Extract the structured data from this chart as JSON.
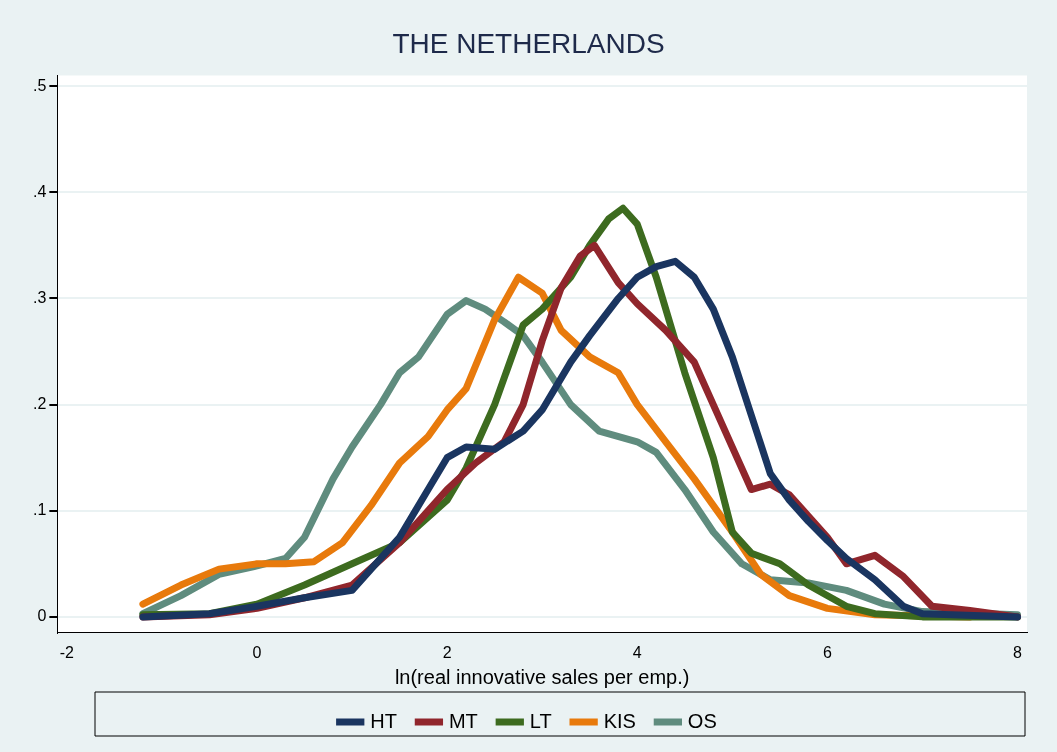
{
  "chart_data": {
    "type": "line",
    "title": "THE NETHERLANDS",
    "xlabel": "ln(real innovative sales per emp.)",
    "xlim": [
      -2.1,
      8.1
    ],
    "xticks": [
      -2,
      0,
      2,
      4,
      6,
      8
    ],
    "ylim": [
      -0.015,
      0.51
    ],
    "yticks": [
      {
        "value": 0,
        "label": "0"
      },
      {
        "value": 0.1,
        "label": ".1"
      },
      {
        "value": 0.2,
        "label": ".2"
      },
      {
        "value": 0.3,
        "label": ".3"
      },
      {
        "value": 0.4,
        "label": ".4"
      },
      {
        "value": 0.5,
        "label": ".5"
      }
    ],
    "grid": "y",
    "legend": "bottom",
    "marker": "none",
    "line_style": "solid",
    "series": [
      {
        "name": "HT",
        "color": "#1a3560",
        "x": [
          -1.2,
          -0.5,
          0,
          0.5,
          1.0,
          1.2,
          1.5,
          1.8,
          2.0,
          2.2,
          2.5,
          2.8,
          3.0,
          3.3,
          3.5,
          3.8,
          4.0,
          4.2,
          4.4,
          4.6,
          4.8,
          5.0,
          5.2,
          5.4,
          5.6,
          5.8,
          6.0,
          6.2,
          6.5,
          6.8,
          7.0,
          8.0
        ],
        "values": [
          0.0,
          0.003,
          0.01,
          0.018,
          0.025,
          0.045,
          0.075,
          0.12,
          0.15,
          0.16,
          0.158,
          0.175,
          0.195,
          0.24,
          0.265,
          0.3,
          0.32,
          0.33,
          0.335,
          0.32,
          0.29,
          0.245,
          0.19,
          0.135,
          0.11,
          0.09,
          0.072,
          0.055,
          0.035,
          0.01,
          0.003,
          0.0
        ]
      },
      {
        "name": "MT",
        "color": "#90262c",
        "x": [
          -1.2,
          -0.5,
          0,
          0.5,
          1.0,
          1.5,
          2.0,
          2.3,
          2.6,
          2.8,
          3.0,
          3.2,
          3.4,
          3.55,
          3.8,
          4.0,
          4.3,
          4.6,
          4.8,
          5.0,
          5.2,
          5.4,
          5.6,
          5.8,
          6.0,
          6.2,
          6.5,
          6.8,
          7.1,
          7.5,
          8.0
        ],
        "values": [
          0.0,
          0.002,
          0.008,
          0.018,
          0.03,
          0.07,
          0.12,
          0.145,
          0.165,
          0.2,
          0.26,
          0.31,
          0.34,
          0.35,
          0.315,
          0.295,
          0.27,
          0.24,
          0.2,
          0.16,
          0.12,
          0.125,
          0.115,
          0.095,
          0.075,
          0.05,
          0.058,
          0.038,
          0.01,
          0.006,
          0.0
        ]
      },
      {
        "name": "LT",
        "color": "#3d6b1f",
        "x": [
          -1.2,
          -0.5,
          0,
          0.5,
          1.0,
          1.5,
          2.0,
          2.2,
          2.5,
          2.8,
          3.0,
          3.3,
          3.5,
          3.7,
          3.85,
          4.0,
          4.2,
          4.5,
          4.8,
          5.0,
          5.2,
          5.5,
          5.8,
          6.2,
          6.5,
          7.0,
          8.0
        ],
        "values": [
          0.002,
          0.003,
          0.012,
          0.03,
          0.05,
          0.07,
          0.11,
          0.14,
          0.2,
          0.275,
          0.29,
          0.32,
          0.35,
          0.375,
          0.385,
          0.37,
          0.32,
          0.23,
          0.15,
          0.08,
          0.06,
          0.05,
          0.03,
          0.01,
          0.003,
          0.0,
          0.0
        ]
      },
      {
        "name": "KIS",
        "color": "#e87a0c",
        "x": [
          -1.2,
          -0.8,
          -0.4,
          0,
          0.3,
          0.6,
          0.9,
          1.2,
          1.5,
          1.8,
          2.0,
          2.2,
          2.5,
          2.75,
          3.0,
          3.2,
          3.5,
          3.8,
          4.0,
          4.3,
          4.6,
          5.0,
          5.3,
          5.6,
          6.0,
          6.5,
          7.5
        ],
        "values": [
          0.012,
          0.03,
          0.045,
          0.05,
          0.05,
          0.052,
          0.07,
          0.105,
          0.145,
          0.17,
          0.195,
          0.215,
          0.28,
          0.32,
          0.305,
          0.27,
          0.245,
          0.23,
          0.2,
          0.165,
          0.13,
          0.08,
          0.04,
          0.02,
          0.008,
          0.002,
          0.0
        ]
      },
      {
        "name": "OS",
        "color": "#5f8c7e",
        "x": [
          -1.2,
          -0.8,
          -0.4,
          0,
          0.3,
          0.5,
          0.8,
          1.0,
          1.3,
          1.5,
          1.7,
          2.0,
          2.2,
          2.4,
          2.6,
          2.8,
          3.0,
          3.3,
          3.6,
          4.0,
          4.2,
          4.5,
          4.8,
          5.1,
          5.4,
          5.8,
          6.2,
          6.6,
          7.0,
          8.0
        ],
        "values": [
          0.003,
          0.02,
          0.04,
          0.048,
          0.055,
          0.075,
          0.13,
          0.16,
          0.2,
          0.23,
          0.245,
          0.285,
          0.298,
          0.29,
          0.278,
          0.265,
          0.24,
          0.2,
          0.175,
          0.165,
          0.155,
          0.12,
          0.08,
          0.05,
          0.035,
          0.032,
          0.025,
          0.012,
          0.005,
          0.002
        ]
      }
    ]
  }
}
